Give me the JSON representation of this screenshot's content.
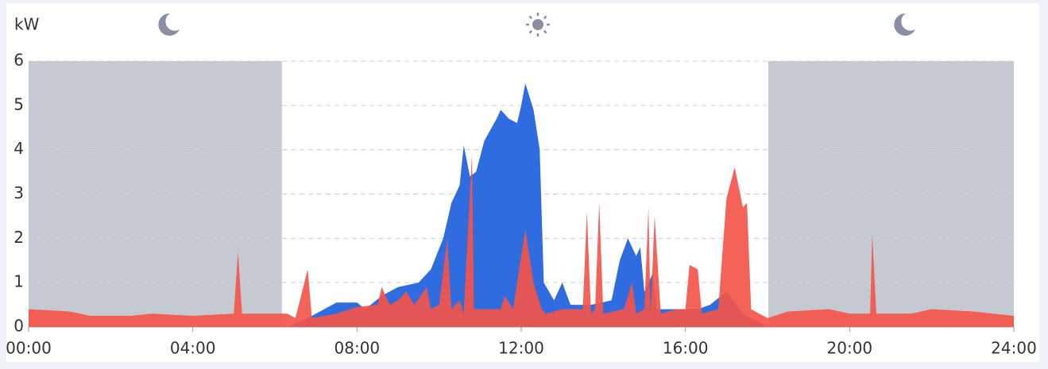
{
  "chart_data": {
    "type": "area",
    "y_label": "kW",
    "xlim": [
      0,
      24
    ],
    "ylim": [
      0,
      6
    ],
    "xticks": [
      {
        "value": 0,
        "label": "00:00"
      },
      {
        "value": 4,
        "label": "04:00"
      },
      {
        "value": 8,
        "label": "08:00"
      },
      {
        "value": 12,
        "label": "12:00"
      },
      {
        "value": 16,
        "label": "16:00"
      },
      {
        "value": 20,
        "label": "20:00"
      },
      {
        "value": 24,
        "label": "24:00"
      }
    ],
    "yticks": [
      0,
      1,
      2,
      3,
      4,
      5,
      6
    ],
    "grid": true,
    "night_bands": [
      [
        0,
        6.17
      ],
      [
        18.02,
        24
      ]
    ],
    "night_color": "#c5c9d1",
    "series": [
      {
        "color": "#2f6ce0",
        "x": [
          0,
          6.3,
          6.8,
          7.2,
          7.5,
          8.0,
          8.2,
          8.6,
          9.0,
          9.5,
          9.8,
          10.1,
          10.3,
          10.5,
          10.6,
          10.75,
          10.9,
          11.1,
          11.4,
          11.5,
          11.7,
          11.9,
          12.0,
          12.1,
          12.3,
          12.45,
          12.5,
          12.55,
          12.8,
          13.0,
          13.2,
          13.7,
          14.2,
          14.4,
          14.6,
          14.8,
          14.9,
          15.0,
          15.2,
          15.3,
          15.6,
          16.0,
          16.3,
          16.6,
          17.0,
          17.4,
          17.8,
          18.0,
          24
        ],
        "values": [
          0,
          0,
          0.2,
          0.4,
          0.55,
          0.55,
          0.4,
          0.7,
          0.9,
          1.0,
          1.3,
          2.0,
          2.8,
          3.2,
          4.1,
          3.4,
          3.5,
          4.2,
          4.7,
          4.9,
          4.7,
          4.6,
          5.0,
          5.5,
          4.9,
          4.0,
          2.5,
          1.0,
          0.6,
          1.0,
          0.5,
          0.5,
          0.6,
          1.5,
          2.0,
          1.6,
          1.8,
          0.8,
          1.2,
          0.4,
          0.4,
          0.4,
          0.4,
          0.5,
          0.8,
          0.3,
          0.1,
          0,
          0
        ]
      },
      {
        "color": "#f4554a",
        "x": [
          0,
          1.0,
          1.5,
          2.5,
          3,
          4,
          5.0,
          5.1,
          5.2,
          6.3,
          6.5,
          6.8,
          6.9,
          7.5,
          8.0,
          8.5,
          8.6,
          8.8,
          9.0,
          9.2,
          9.4,
          9.7,
          9.8,
          10.0,
          10.2,
          10.3,
          10.5,
          10.6,
          10.8,
          10.85,
          11.0,
          11.5,
          11.6,
          11.8,
          11.9,
          12.1,
          12.3,
          12.5,
          12.6,
          13.0,
          13.5,
          13.6,
          13.7,
          13.8,
          13.9,
          14.0,
          14.5,
          14.7,
          14.8,
          15.0,
          15.1,
          15.15,
          15.25,
          15.4,
          15.8,
          16.0,
          16.1,
          16.3,
          16.4,
          16.8,
          17.0,
          17.2,
          17.4,
          17.5,
          17.6,
          18.0,
          18.5,
          19.5,
          20.0,
          20.5,
          20.55,
          20.65,
          21.5,
          22.0,
          23.0,
          24
        ],
        "values": [
          0.4,
          0.35,
          0.25,
          0.25,
          0.3,
          0.25,
          0.3,
          1.7,
          0.3,
          0.3,
          0.2,
          1.3,
          0.2,
          0.3,
          0.45,
          0.5,
          0.9,
          0.5,
          0.6,
          0.8,
          0.5,
          0.9,
          0.4,
          0.5,
          2.0,
          0.4,
          0.6,
          0.3,
          3.9,
          0.4,
          0.4,
          0.4,
          0.7,
          0.4,
          1.0,
          2.2,
          1.0,
          0.4,
          0.3,
          0.4,
          0.4,
          2.6,
          0.3,
          0.4,
          2.8,
          0.3,
          0.4,
          1.0,
          0.3,
          0.4,
          2.7,
          0.3,
          2.5,
          0.3,
          0.4,
          0.4,
          1.4,
          1.3,
          0.3,
          0.4,
          2.9,
          3.6,
          2.7,
          2.8,
          0.4,
          0.2,
          0.35,
          0.4,
          0.3,
          0.3,
          2.1,
          0.3,
          0.3,
          0.4,
          0.35,
          0.25
        ]
      }
    ]
  }
}
